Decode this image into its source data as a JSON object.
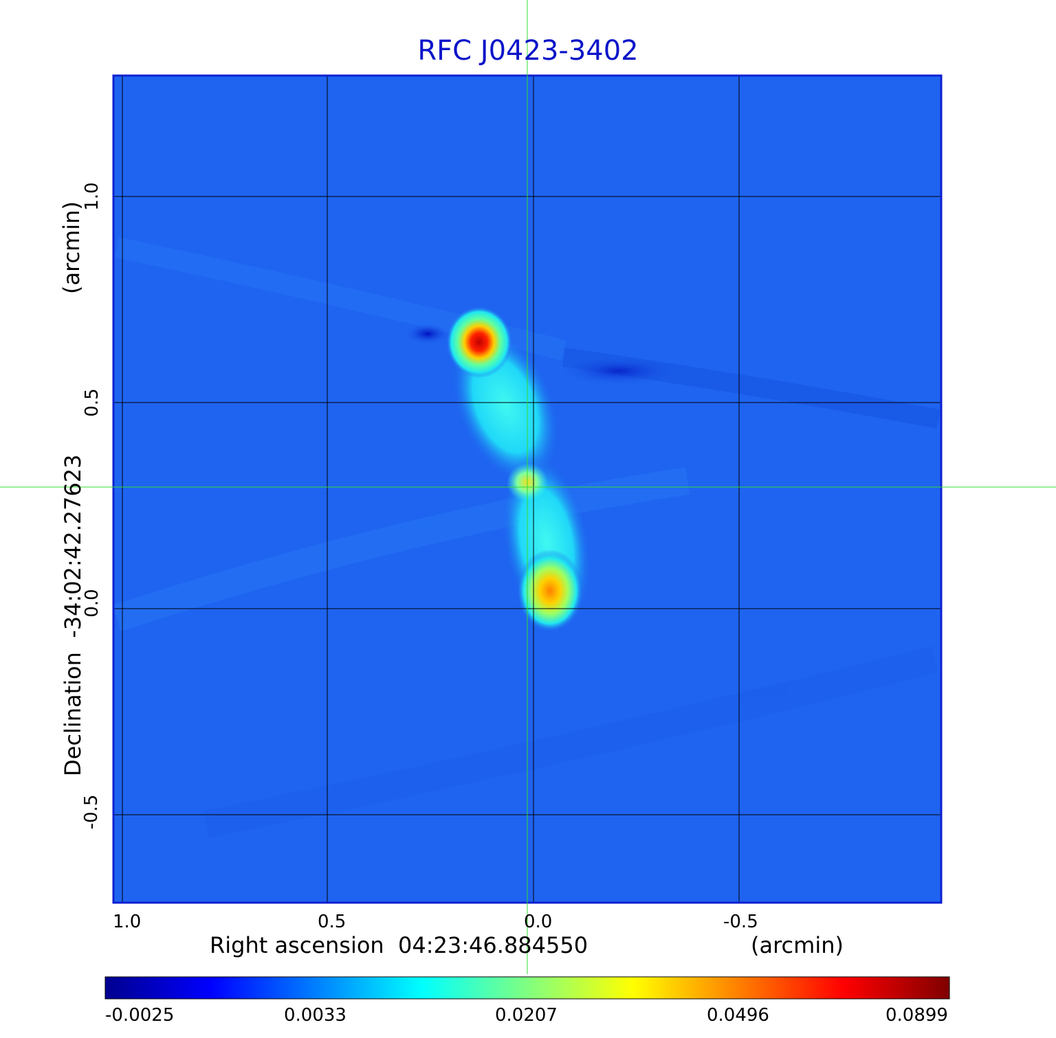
{
  "title": "RFC J0423-3402",
  "axes": {
    "x_label": "Right ascension  04:23:46.884550",
    "x_unit": "(arcmin)",
    "y_label": "Declination  -34:02:42.27623",
    "y_unit": "(arcmin)",
    "x_ticks": [
      "1.0",
      "0.5",
      "0.0",
      "-0.5"
    ],
    "y_ticks": [
      "1.0",
      "0.5",
      "0.0",
      "-0.5"
    ]
  },
  "colorbar": {
    "ticks": [
      "-0.0025",
      "0.0033",
      "0.0207",
      "0.0496",
      "0.0899"
    ],
    "colormap": "jet"
  },
  "colors": {
    "title": "#0a14c8",
    "frame": "#1020d0",
    "background_map": "#1e64f0",
    "crosshair": "#33dd33",
    "grid": "#000000"
  }
}
